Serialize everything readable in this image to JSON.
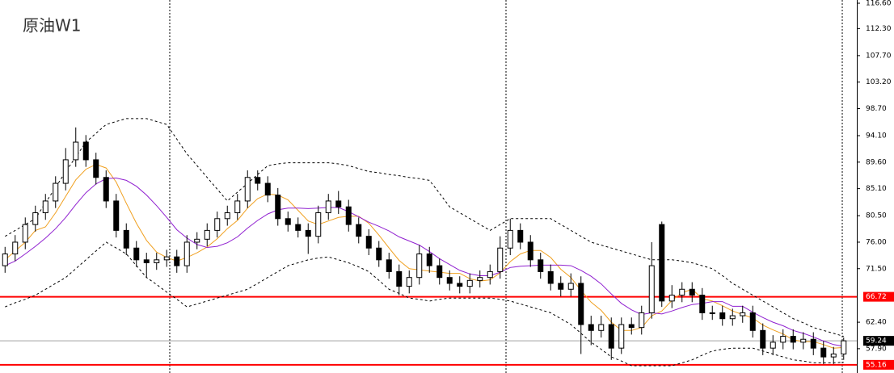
{
  "chart_data": {
    "type": "candlestick",
    "title": "原油W1",
    "ylim": [
      53.77,
      117.15
    ],
    "yticks": [
      {
        "value": 116.6,
        "label": "116.60"
      },
      {
        "value": 112.3,
        "label": "112.30"
      },
      {
        "value": 107.7,
        "label": "107.70"
      },
      {
        "value": 103.2,
        "label": "103.20"
      },
      {
        "value": 98.7,
        "label": "98.70"
      },
      {
        "value": 94.1,
        "label": "94.10"
      },
      {
        "value": 89.6,
        "label": "89.60"
      },
      {
        "value": 85.1,
        "label": "85.10"
      },
      {
        "value": 80.5,
        "label": "80.50"
      },
      {
        "value": 76,
        "label": "76.00"
      },
      {
        "value": 71.5,
        "label": "71.50"
      },
      {
        "value": 62.4,
        "label": "62.40"
      },
      {
        "value": 57.9,
        "label": "57.90"
      }
    ],
    "open": [
      72,
      74,
      76,
      79,
      81,
      83,
      86,
      90,
      93,
      90,
      87,
      83,
      78,
      75,
      73,
      72.5,
      73,
      73.5,
      72,
      76,
      76.5,
      78,
      80,
      81,
      83,
      87,
      86,
      84,
      80,
      79,
      78,
      77,
      81,
      83,
      82,
      79,
      77,
      75,
      73,
      71,
      68.5,
      70,
      74,
      72,
      70,
      69,
      68.5,
      69.5,
      70,
      71,
      75,
      78,
      76,
      73,
      71,
      69,
      68,
      69,
      62,
      61,
      62,
      58,
      62,
      61.5,
      64,
      79,
      66,
      67,
      68,
      67,
      64,
      64,
      63,
      63.5,
      64,
      61,
      58,
      59,
      60,
      59,
      59.5,
      58,
      56.5,
      57
    ],
    "high": [
      75.2,
      77.2,
      80.2,
      82.2,
      84.2,
      87.2,
      92,
      95.5,
      94.2,
      91.2,
      88.2,
      84.2,
      79.2,
      76.2,
      74.2,
      74.2,
      74.7,
      74.7,
      77.2,
      77.7,
      79.2,
      81.2,
      82.2,
      84.2,
      88.2,
      88.2,
      87.2,
      85.2,
      81.2,
      80.2,
      79.2,
      82.2,
      84.2,
      84.7,
      83.2,
      80.2,
      78.2,
      76.2,
      74.2,
      72.2,
      71.2,
      75.5,
      75.2,
      73.2,
      71.2,
      70.2,
      70.7,
      71.2,
      72.2,
      77,
      80,
      79.2,
      77.2,
      74.2,
      72.2,
      70.2,
      70.7,
      70.2,
      63.5,
      63.5,
      63.2,
      63.2,
      63.2,
      65.2,
      76,
      79.5,
      68.7,
      69.2,
      69.2,
      68.2,
      65.2,
      65.2,
      64.7,
      65.2,
      65.2,
      62.2,
      60.2,
      61.2,
      61.2,
      60.7,
      60.7,
      59.2,
      58.2,
      59.8
    ],
    "low": [
      70.8,
      72.8,
      74.8,
      77.8,
      79.8,
      81.8,
      84.8,
      88.8,
      88.8,
      85.8,
      81.8,
      76.8,
      73.8,
      71.8,
      70,
      71.3,
      71.8,
      70.8,
      70.8,
      74.8,
      75.3,
      76.8,
      78.8,
      79.8,
      81.8,
      84.8,
      82.8,
      78.8,
      77.8,
      76.8,
      74,
      75.8,
      79.8,
      80.8,
      77.8,
      75.8,
      73.8,
      71.8,
      69.8,
      67,
      67.3,
      68.8,
      70.8,
      68.8,
      67.8,
      67.3,
      67.3,
      68.3,
      68.8,
      69.8,
      73.8,
      74.8,
      71.8,
      69.8,
      67.8,
      66.8,
      66.8,
      57,
      58.5,
      59.8,
      56,
      57,
      60.3,
      60.3,
      63,
      65,
      64.8,
      65.8,
      65.8,
      62.8,
      62.8,
      61.8,
      61.8,
      62.3,
      59.8,
      56.8,
      56.8,
      57.8,
      57.8,
      57.8,
      56.8,
      55.3,
      55.3,
      56
    ],
    "close": [
      74,
      76,
      79,
      81,
      83,
      86,
      90,
      93,
      90,
      87,
      83,
      78,
      75,
      73,
      72.5,
      73,
      73.5,
      72,
      76,
      76.5,
      78,
      80,
      81,
      83,
      87,
      86,
      84,
      80,
      79,
      78,
      77,
      81,
      83,
      82,
      79,
      77,
      75,
      73,
      71,
      68.5,
      70,
      74,
      72,
      70,
      69,
      68.5,
      69.5,
      70,
      71,
      75,
      78,
      76,
      73,
      71,
      69,
      68,
      69,
      62,
      61,
      62,
      58,
      62,
      61.5,
      64,
      72,
      66,
      67,
      68,
      67,
      64,
      64,
      63,
      63.5,
      64,
      61,
      58,
      59,
      60,
      59,
      59.5,
      58,
      56.5,
      57,
      59.24
    ],
    "up_color": "#ffffff",
    "down_color": "#000000",
    "lines": [
      {
        "color": "#f0a020",
        "dashed": false,
        "values": [
          73,
          74.5,
          76,
          78,
          78.6,
          81,
          83.8,
          86.6,
          88.4,
          89.2,
          88.6,
          86.2,
          82.6,
          79.2,
          76.3,
          74.3,
          73.4,
          72.8,
          73.4,
          74.2,
          75.2,
          76.6,
          78.3,
          79.7,
          81.8,
          83.4,
          84.2,
          84,
          83.2,
          81.4,
          79.6,
          79,
          79.6,
          80.2,
          80.4,
          80.4,
          79.2,
          77.2,
          75,
          72.9,
          71.5,
          71.3,
          71.1,
          70.9,
          70.7,
          70.7,
          69.8,
          69.4,
          69.6,
          70.8,
          72.7,
          74,
          74.6,
          74.6,
          73.4,
          71.4,
          70,
          67.8,
          65.8,
          64.4,
          62.4,
          61,
          61,
          61.5,
          63.5,
          64.3,
          66.1,
          67.4,
          68,
          66.4,
          66,
          65.2,
          64.3,
          63.7,
          63.1,
          61.9,
          61.1,
          60.4,
          59.4,
          59.1,
          59.1,
          58.6,
          58,
          58.1
        ]
      },
      {
        "color": "#9020d0",
        "dashed": false,
        "values": [
          72,
          72.8,
          74,
          75.3,
          76.7,
          78.3,
          80.2,
          82.4,
          84.4,
          85.9,
          86.8,
          86.9,
          86.5,
          85.5,
          84,
          82.2,
          80.2,
          78.1,
          76.7,
          75.6,
          75.1,
          75.3,
          75.9,
          76.9,
          78.4,
          79.7,
          80.8,
          81.5,
          81.8,
          81.8,
          81.7,
          81.8,
          81.9,
          81.9,
          81.2,
          80.3,
          79.4,
          78.7,
          77.9,
          76.9,
          76.2,
          75.5,
          74.4,
          73.2,
          72.2,
          71.2,
          70.6,
          70.3,
          70.3,
          70.9,
          71.7,
          71.9,
          72,
          72.1,
          72.1,
          72.1,
          72,
          71.2,
          70.2,
          68.9,
          67.2,
          65.6,
          64.5,
          63.7,
          64,
          63.8,
          64.3,
          64.9,
          65.4,
          65.6,
          65.9,
          65.9,
          65.1,
          65.1,
          64.1,
          63.2,
          62.4,
          61.8,
          61,
          60.5,
          59.9,
          59.2,
          58.6,
          58.3
        ]
      },
      {
        "color": "#000000",
        "dashed": true,
        "values": [
          77,
          78,
          79,
          80,
          82.7,
          85.3,
          88,
          90.5,
          93,
          94.5,
          96,
          96.5,
          97,
          97,
          97,
          96.5,
          96,
          93.5,
          91,
          89,
          87,
          85,
          83,
          84.5,
          86,
          87.5,
          89,
          89.3,
          89.5,
          89.5,
          89.5,
          89.5,
          89.5,
          89.3,
          89,
          88.5,
          88,
          87.8,
          87.5,
          87.3,
          87,
          86.8,
          86.5,
          84.3,
          82,
          81,
          80,
          79,
          78,
          79,
          80,
          80,
          80,
          80,
          80,
          79,
          78,
          77,
          76,
          75.5,
          75,
          74.5,
          74,
          73.5,
          73,
          73,
          73,
          72.8,
          72.5,
          72,
          71.5,
          70.3,
          69,
          68,
          67,
          66,
          65,
          64,
          63,
          62.3,
          61.5,
          61,
          60.5,
          60
        ]
      },
      {
        "color": "#000000",
        "dashed": true,
        "values": [
          65,
          65.7,
          66.3,
          67,
          68,
          69,
          70,
          71.5,
          73,
          74.5,
          76,
          75,
          74,
          72,
          70,
          68.8,
          67.5,
          66.3,
          65,
          65.5,
          66,
          66.5,
          67,
          67.5,
          68,
          69,
          70,
          71,
          72,
          72.5,
          73,
          73.3,
          73.5,
          73,
          72.5,
          71.8,
          71,
          69.5,
          68,
          67.3,
          66.5,
          66.3,
          66,
          66.3,
          66.5,
          66.5,
          66.5,
          66.5,
          66.5,
          66.3,
          66,
          65.5,
          65,
          64.5,
          64,
          63,
          62,
          60.5,
          59,
          57.8,
          56.5,
          55.8,
          55,
          55,
          55,
          55,
          55,
          55.5,
          56,
          56.8,
          57.5,
          57.8,
          58,
          58,
          58,
          57.5,
          57,
          56.5,
          56,
          55.8,
          55.5,
          55.5,
          55.5,
          55.6
        ]
      }
    ],
    "hlines": [
      {
        "value": 66.72,
        "color": "#ff0000",
        "label_color": "#ff0000"
      },
      {
        "value": 55.16,
        "color": "#ff0000",
        "label_color": "#ff0000"
      },
      {
        "value": 59.24,
        "color": "#a0a0a0",
        "label_color": "#000000"
      }
    ]
  }
}
